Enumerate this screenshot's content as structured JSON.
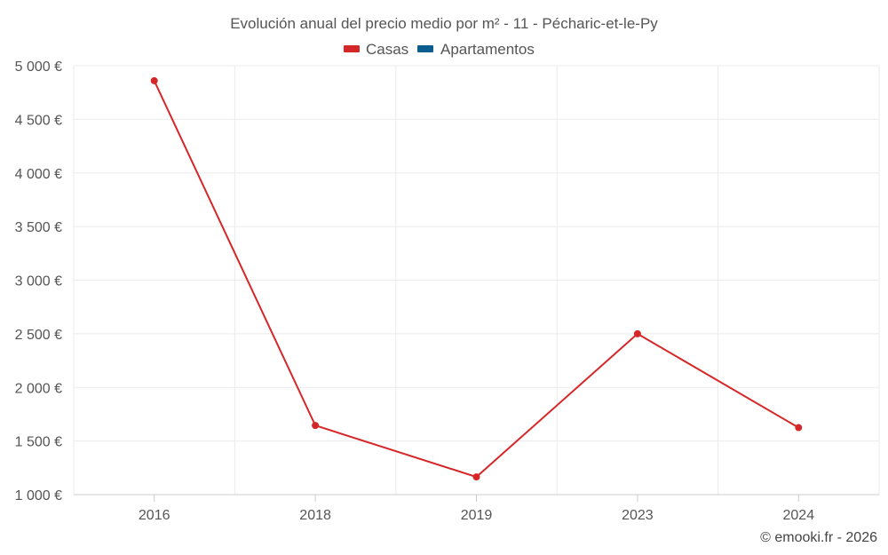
{
  "chart_data": {
    "type": "line",
    "title": "Evolución anual del precio medio por m² - 11 - Pécharic-et-le-Py",
    "categories": [
      "2016",
      "2018",
      "2019",
      "2023",
      "2024"
    ],
    "series": [
      {
        "name": "Casas",
        "color": "#d62728",
        "values": [
          4860,
          1645,
          1165,
          2500,
          1625
        ]
      },
      {
        "name": "Apartamentos",
        "color": "#0b5d8f",
        "values": [
          null,
          null,
          null,
          null,
          null
        ]
      }
    ],
    "y_ticks": [
      1000,
      1500,
      2000,
      2500,
      3000,
      3500,
      4000,
      4500,
      5000
    ],
    "y_tick_labels": [
      "1 000 €",
      "1 500 €",
      "2 000 €",
      "2 500 €",
      "3 000 €",
      "3 500 €",
      "4 000 €",
      "4 500 €",
      "5 000 €"
    ],
    "ylim": [
      1000,
      5000
    ],
    "xlabel": "",
    "ylabel": "",
    "grid": true,
    "legend_position": "top-center"
  },
  "footer": {
    "credit": "© emooki.fr - 2026"
  }
}
